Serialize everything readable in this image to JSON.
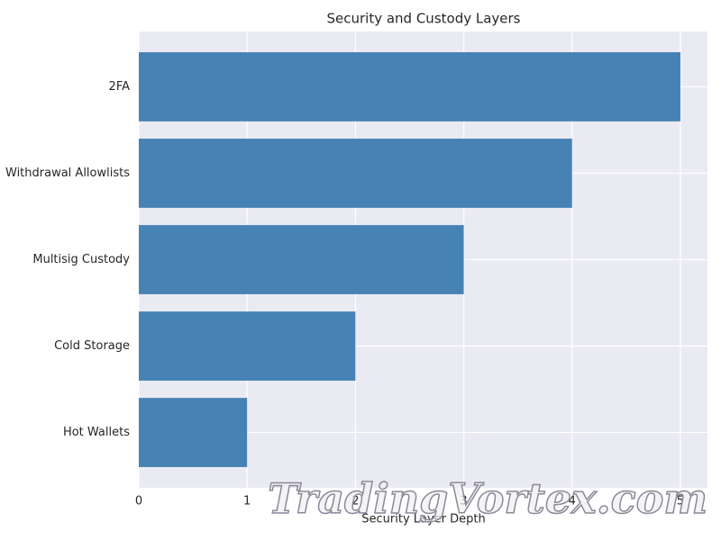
{
  "chart_data": {
    "type": "barh",
    "title": "Security and Custody Layers",
    "x_label": "Security Layer Depth",
    "categories": [
      "Hot Wallets",
      "Cold Storage",
      "Multisig Custody",
      "Withdrawal Allowlists",
      "2FA"
    ],
    "values": [
      1,
      2,
      3,
      4,
      5
    ],
    "color": "#4682b4",
    "xlim": [
      0,
      5.25
    ],
    "xticks": [
      0,
      1,
      2,
      3,
      4,
      5
    ],
    "grid": true,
    "watermark": "TradingVortex.com"
  }
}
